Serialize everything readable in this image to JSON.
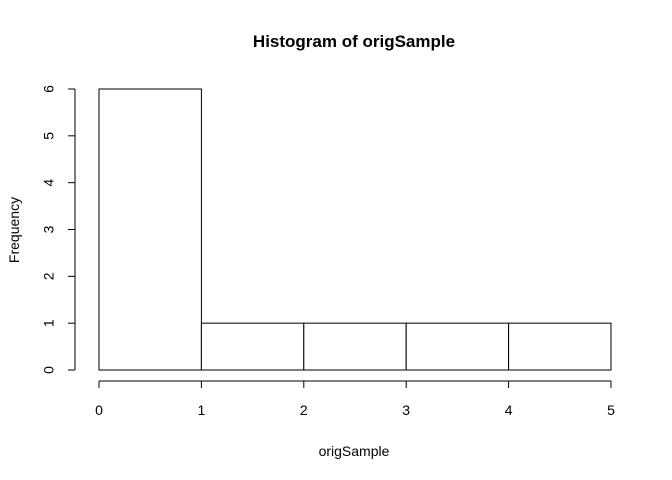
{
  "chart_data": {
    "type": "bar",
    "title": "Histogram of origSample",
    "xlabel": "origSample",
    "ylabel": "Frequency",
    "bins": [
      {
        "start": 0,
        "end": 1,
        "count": 6
      },
      {
        "start": 1,
        "end": 2,
        "count": 1
      },
      {
        "start": 2,
        "end": 3,
        "count": 1
      },
      {
        "start": 3,
        "end": 4,
        "count": 1
      },
      {
        "start": 4,
        "end": 5,
        "count": 1
      }
    ],
    "xlim": [
      0,
      5
    ],
    "ylim": [
      0,
      6
    ],
    "xticks": [
      0,
      1,
      2,
      3,
      4,
      5
    ],
    "yticks": [
      0,
      1,
      2,
      3,
      4,
      5,
      6
    ],
    "grid": false,
    "colors": {
      "bar_fill": "#ffffff",
      "bar_stroke": "#000000"
    }
  }
}
